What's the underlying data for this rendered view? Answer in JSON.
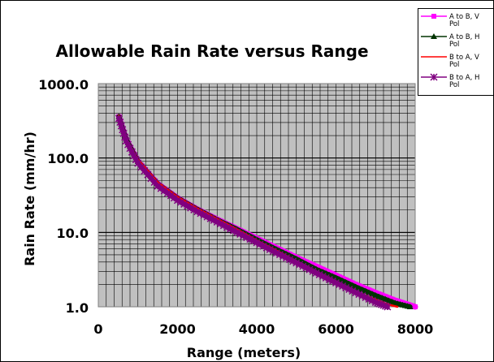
{
  "chart_data": {
    "type": "scatter",
    "title": "Allowable Rain Rate versus Range",
    "xlabel": "Range (meters)",
    "ylabel": "Rain Rate (mm/hr)",
    "xlim": [
      0,
      8000
    ],
    "ylim": [
      1,
      1000
    ],
    "yscale": "log",
    "xticks": [
      "0",
      "2000",
      "4000",
      "6000",
      "8000"
    ],
    "yticks": [
      "1.0",
      "10.0",
      "100.0",
      "1000.0"
    ],
    "grid": true,
    "legend_position": "top-right",
    "series": [
      {
        "name": "A to B, V Pol",
        "color": "#ff00ff",
        "marker": "square",
        "x": [
          520,
          700,
          1000,
          1500,
          2000,
          2500,
          3000,
          3500,
          4000,
          4500,
          5000,
          5500,
          6000,
          6500,
          7000,
          7500,
          8000
        ],
        "y": [
          360,
          180,
          90,
          45,
          29,
          20.5,
          15,
          11.2,
          8.3,
          6.2,
          4.6,
          3.5,
          2.65,
          2,
          1.55,
          1.22,
          1.0
        ]
      },
      {
        "name": "A to B, H Pol",
        "color": "#003300",
        "marker": "triangle",
        "x": [
          520,
          700,
          1000,
          1500,
          2000,
          2500,
          3000,
          3500,
          4000,
          4500,
          5000,
          5500,
          6000,
          6500,
          7000,
          7500,
          7870
        ],
        "y": [
          360,
          180,
          90,
          45,
          29,
          20.5,
          14.8,
          11,
          8,
          5.9,
          4.4,
          3.2,
          2.45,
          1.85,
          1.42,
          1.12,
          1.0
        ]
      },
      {
        "name": "B to A, V Pol",
        "color": "#ff0000",
        "marker": "none",
        "x": [
          520,
          700,
          1000,
          1500,
          2000,
          2500,
          3000,
          3500,
          4000,
          4500,
          5000,
          5500,
          6000,
          6500,
          7000,
          7300,
          7550
        ],
        "y": [
          370,
          185,
          95,
          47,
          30,
          21,
          15.2,
          11,
          7.8,
          5.7,
          4.1,
          3,
          2.2,
          1.6,
          1.25,
          1.08,
          1.0
        ]
      },
      {
        "name": "B to A, H Pol",
        "color": "#800080",
        "marker": "star",
        "x": [
          520,
          700,
          1000,
          1500,
          2000,
          2500,
          3000,
          3500,
          4000,
          4500,
          5000,
          5500,
          6000,
          6500,
          7000,
          7300
        ],
        "y": [
          340,
          170,
          85,
          42,
          27,
          19,
          13.8,
          10,
          7.3,
          5.3,
          3.9,
          2.85,
          2.1,
          1.55,
          1.15,
          1.0
        ]
      }
    ]
  }
}
